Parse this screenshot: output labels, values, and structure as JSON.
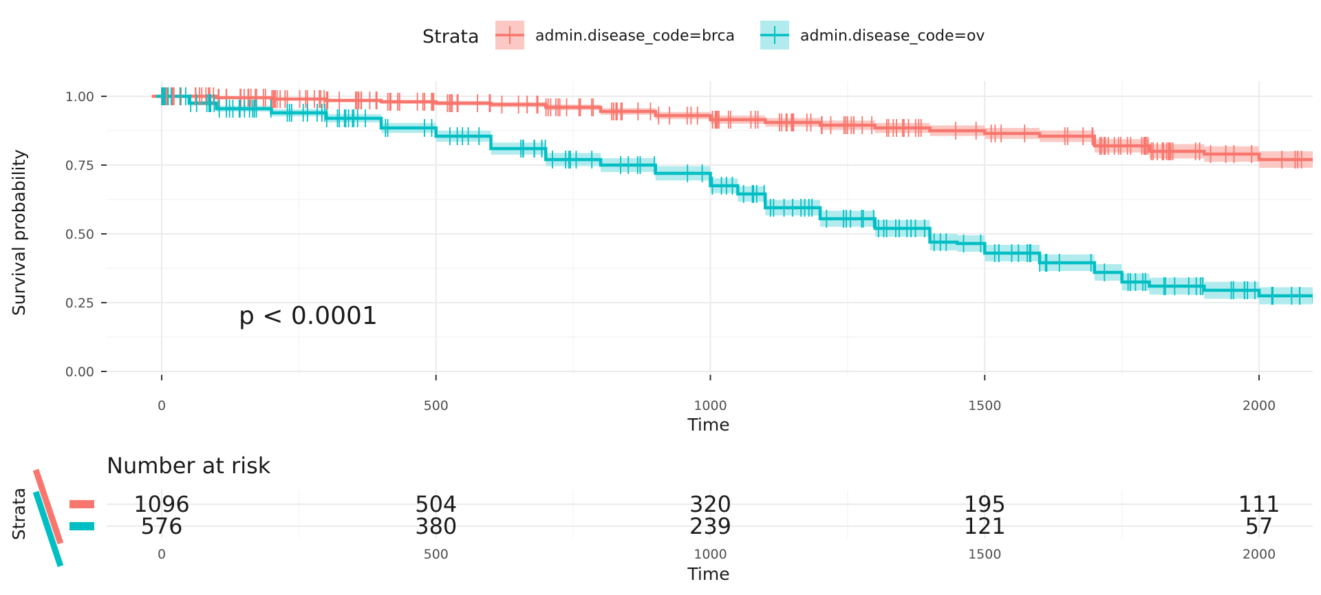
{
  "chart_data": [
    {
      "type": "line",
      "subtype": "kaplan-meier",
      "title": "",
      "xlabel": "Time",
      "ylabel": "Survival probability",
      "xlim": [
        -100,
        2100
      ],
      "ylim": [
        -0.03,
        1.06
      ],
      "x_ticks": [
        0,
        500,
        1000,
        1500,
        2000
      ],
      "x_tick_labels": [
        "0",
        "500",
        "1000",
        "1500",
        "2000"
      ],
      "y_ticks": [
        0,
        0.25,
        0.5,
        0.75,
        1.0
      ],
      "y_tick_labels": [
        "0.00",
        "0.25",
        "0.50",
        "0.75",
        "1.00"
      ],
      "grid": true,
      "legend_position": "top",
      "legend_title": "Strata",
      "annotation": "p < 0.0001",
      "series": [
        {
          "name": "admin.disease_code=brca",
          "color": "#F8766D",
          "fill": "#FBC8C3",
          "x": [
            -18,
            0,
            100,
            200,
            300,
            400,
            500,
            600,
            700,
            800,
            900,
            1000,
            1100,
            1200,
            1300,
            1400,
            1500,
            1600,
            1700,
            1800,
            1900,
            2000,
            2100
          ],
          "y": [
            1.0,
            1.0,
            0.995,
            0.99,
            0.985,
            0.98,
            0.975,
            0.97,
            0.96,
            0.945,
            0.93,
            0.915,
            0.905,
            0.895,
            0.885,
            0.875,
            0.865,
            0.855,
            0.82,
            0.8,
            0.79,
            0.77,
            0.765
          ],
          "ci_halfwidth": [
            0,
            0,
            0.003,
            0.005,
            0.006,
            0.007,
            0.008,
            0.009,
            0.01,
            0.012,
            0.013,
            0.015,
            0.016,
            0.017,
            0.018,
            0.019,
            0.02,
            0.021,
            0.024,
            0.026,
            0.028,
            0.03,
            0.032
          ]
        },
        {
          "name": "admin.disease_code=ov",
          "color": "#00BFC4",
          "fill": "#B2EBED",
          "x": [
            -10,
            0,
            50,
            100,
            200,
            300,
            400,
            500,
            600,
            700,
            800,
            900,
            1000,
            1050,
            1100,
            1200,
            1300,
            1400,
            1450,
            1500,
            1600,
            1700,
            1750,
            1800,
            1900,
            2000,
            2100
          ],
          "y": [
            1.0,
            1.0,
            0.975,
            0.955,
            0.94,
            0.92,
            0.885,
            0.855,
            0.81,
            0.77,
            0.75,
            0.72,
            0.675,
            0.645,
            0.595,
            0.555,
            0.52,
            0.47,
            0.465,
            0.43,
            0.395,
            0.36,
            0.325,
            0.31,
            0.295,
            0.275,
            0.255
          ],
          "ci_halfwidth": [
            0,
            0,
            0.008,
            0.011,
            0.013,
            0.015,
            0.018,
            0.02,
            0.022,
            0.024,
            0.025,
            0.026,
            0.027,
            0.028,
            0.028,
            0.029,
            0.03,
            0.03,
            0.03,
            0.03,
            0.03,
            0.03,
            0.031,
            0.031,
            0.031,
            0.031,
            0.032
          ]
        }
      ]
    },
    {
      "type": "table",
      "title": "Number at risk",
      "xlabel": "Time",
      "ylabel": "Strata",
      "x_ticks": [
        0,
        500,
        1000,
        1500,
        2000
      ],
      "x_tick_labels": [
        "0",
        "500",
        "1000",
        "1500",
        "2000"
      ],
      "rows": [
        {
          "name": "admin.disease_code=brca",
          "color": "#F8766D",
          "values": [
            "1096",
            "504",
            "320",
            "195",
            "111"
          ]
        },
        {
          "name": "admin.disease_code=ov",
          "color": "#00BFC4",
          "values": [
            "576",
            "380",
            "239",
            "121",
            "57"
          ]
        }
      ]
    }
  ]
}
